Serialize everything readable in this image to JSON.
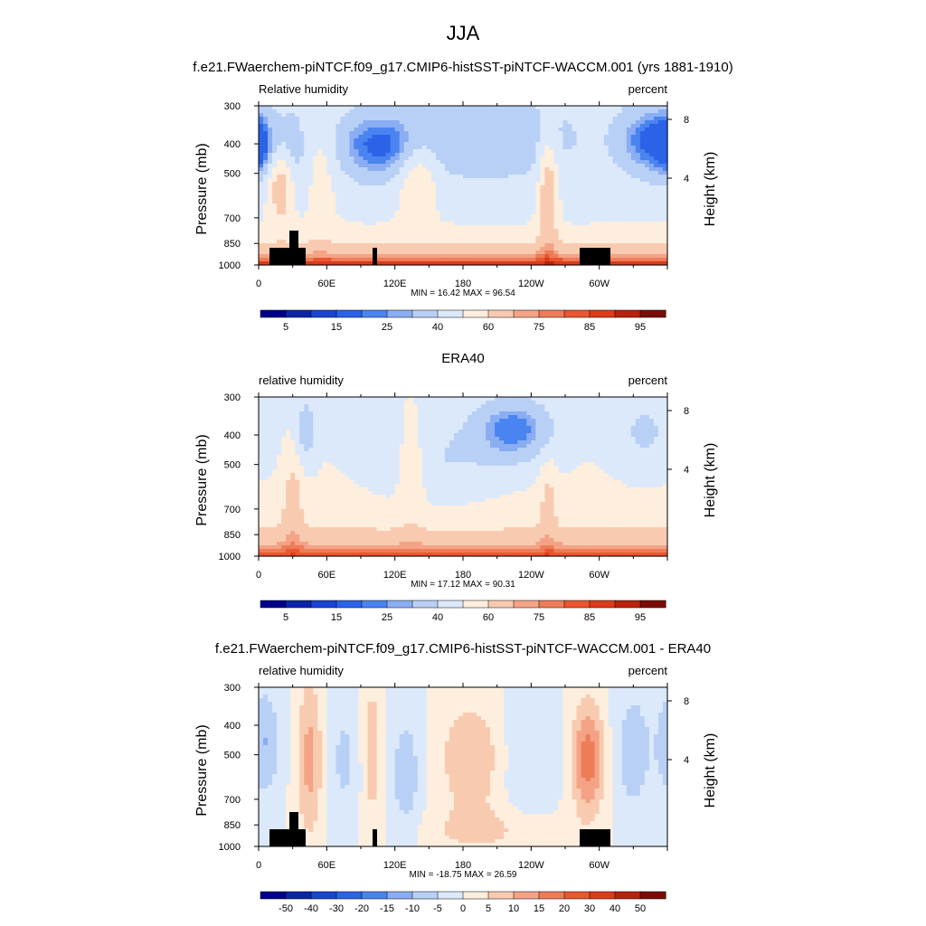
{
  "page": {
    "title": "JJA",
    "subtitle": "f.e21.FWaerchem-piNTCF.f09_g17.CMIP6-histSST-piNTCF-WACCM.001 (yrs 1881-1910)"
  },
  "colors": {
    "abs_palette": [
      "#00008b",
      "#0a25a8",
      "#1a44d2",
      "#2b63e8",
      "#4a84f0",
      "#8aadf3",
      "#b9d0f6",
      "#dce9fb",
      "#fdeedd",
      "#f8cbb1",
      "#f4a386",
      "#ef7c58",
      "#ea5630",
      "#dd3b1a",
      "#b8220e",
      "#7a0d05"
    ],
    "diff_palette": [
      "#00008b",
      "#0a25a8",
      "#1a44d2",
      "#2b63e8",
      "#4a84f0",
      "#8aadf3",
      "#b9d0f6",
      "#dce9fb",
      "#fdeedd",
      "#f8cbb1",
      "#f4a386",
      "#ef7c58",
      "#ea5630",
      "#dd3b1a",
      "#b8220e",
      "#7a0d05"
    ],
    "land": "#000000"
  },
  "chart_data": [
    {
      "type": "heatmap",
      "panel_title": "",
      "left_label": "Relative humidity",
      "right_label": "percent",
      "ylabel": "Pressure (mb)",
      "ylabel_right": "Height (km)",
      "y_ticks": [
        "300",
        "400",
        "500",
        "700",
        "850",
        "1000"
      ],
      "y_tick_values": [
        300,
        400,
        500,
        700,
        850,
        1000
      ],
      "y_right_ticks": [
        "8",
        "4"
      ],
      "x_ticks": [
        "0",
        "60E",
        "120E",
        "180",
        "120W",
        "60W"
      ],
      "x_tick_values": [
        0,
        60,
        120,
        180,
        240,
        300
      ],
      "xlim": [
        0,
        360
      ],
      "ylim": [
        1000,
        300
      ],
      "y_scale": "log",
      "stats": "MIN =  16.42  MAX =  96.54",
      "colorbar_labels": [
        "5",
        "15",
        "25",
        "40",
        "60",
        "75",
        "85",
        "95"
      ],
      "min": 16.42,
      "max": 96.54
    },
    {
      "type": "heatmap",
      "panel_title": "ERA40",
      "left_label": "relative humidity",
      "right_label": "percent",
      "ylabel": "Pressure (mb)",
      "ylabel_right": "Height (km)",
      "y_ticks": [
        "300",
        "400",
        "500",
        "700",
        "850",
        "1000"
      ],
      "y_tick_values": [
        300,
        400,
        500,
        700,
        850,
        1000
      ],
      "y_right_ticks": [
        "8",
        "4"
      ],
      "x_ticks": [
        "0",
        "60E",
        "120E",
        "180",
        "120W",
        "60W"
      ],
      "x_tick_values": [
        0,
        60,
        120,
        180,
        240,
        300
      ],
      "xlim": [
        0,
        360
      ],
      "ylim": [
        1000,
        300
      ],
      "y_scale": "log",
      "stats": "MIN =  17.12  MAX =  90.31",
      "colorbar_labels": [
        "5",
        "15",
        "25",
        "40",
        "60",
        "75",
        "85",
        "95"
      ],
      "min": 17.12,
      "max": 90.31
    },
    {
      "type": "heatmap",
      "panel_title": "f.e21.FWaerchem-piNTCF.f09_g17.CMIP6-histSST-piNTCF-WACCM.001 - ERA40",
      "left_label": "relative humidity",
      "right_label": "percent",
      "ylabel": "Pressure (mb)",
      "ylabel_right": "Height (km)",
      "y_ticks": [
        "300",
        "400",
        "500",
        "700",
        "850",
        "1000"
      ],
      "y_tick_values": [
        300,
        400,
        500,
        700,
        850,
        1000
      ],
      "y_right_ticks": [
        "8",
        "4"
      ],
      "x_ticks": [
        "0",
        "60E",
        "120E",
        "180",
        "120W",
        "60W"
      ],
      "x_tick_values": [
        0,
        60,
        120,
        180,
        240,
        300
      ],
      "xlim": [
        0,
        360
      ],
      "ylim": [
        1000,
        300
      ],
      "y_scale": "log",
      "stats": "MIN = -18.75  MAX =  26.59",
      "colorbar_labels": [
        "-50",
        "-40",
        "-30",
        "-20",
        "-15",
        "-10",
        "-5",
        "0",
        "5",
        "10",
        "15",
        "20",
        "30",
        "40",
        "50"
      ],
      "min": -18.75,
      "max": 26.59
    }
  ]
}
